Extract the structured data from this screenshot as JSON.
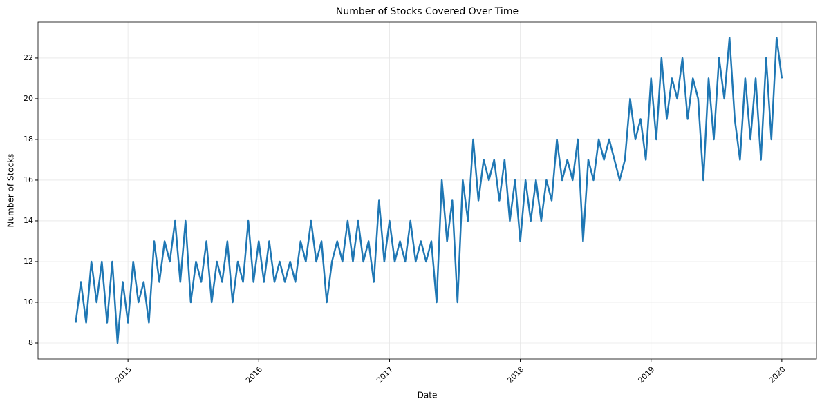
{
  "chart_data": {
    "type": "line",
    "title": "Number of Stocks Covered Over Time",
    "x_label": "Date",
    "y_label": "Number of Stocks",
    "x": [
      2014.6,
      2014.64,
      2014.68,
      2014.72,
      2014.76,
      2014.8,
      2014.84,
      2014.88,
      2014.92,
      2014.96,
      2015,
      2015.04,
      2015.08,
      2015.12,
      2015.16,
      2015.2,
      2015.24,
      2015.28,
      2015.32,
      2015.36,
      2015.4,
      2015.44,
      2015.48,
      2015.52,
      2015.56,
      2015.6,
      2015.64,
      2015.68,
      2015.72,
      2015.76,
      2015.8,
      2015.84,
      2015.88,
      2015.92,
      2015.96,
      2016,
      2016.04,
      2016.08,
      2016.12,
      2016.16,
      2016.2,
      2016.24,
      2016.28,
      2016.32,
      2016.36,
      2016.4,
      2016.44,
      2016.48,
      2016.52,
      2016.56,
      2016.6,
      2016.64,
      2016.68,
      2016.72,
      2016.76,
      2016.8,
      2016.84,
      2016.88,
      2016.92,
      2016.96,
      2017,
      2017.04,
      2017.08,
      2017.12,
      2017.16,
      2017.2,
      2017.24,
      2017.28,
      2017.32,
      2017.36,
      2017.4,
      2017.44,
      2017.48,
      2017.52,
      2017.56,
      2017.6,
      2017.64,
      2017.68,
      2017.72,
      2017.76,
      2017.8,
      2017.84,
      2017.88,
      2017.92,
      2017.96,
      2018,
      2018.04,
      2018.08,
      2018.12,
      2018.16,
      2018.2,
      2018.24,
      2018.28,
      2018.32,
      2018.36,
      2018.4,
      2018.44,
      2018.48,
      2018.52,
      2018.56,
      2018.6,
      2018.64,
      2018.68,
      2018.72,
      2018.76,
      2018.8,
      2018.84,
      2018.88,
      2018.92,
      2018.96,
      2019,
      2019.04,
      2019.08,
      2019.12,
      2019.16,
      2019.2,
      2019.24,
      2019.28,
      2019.32,
      2019.36,
      2019.4,
      2019.44,
      2019.48,
      2019.52,
      2019.56,
      2019.6,
      2019.64,
      2019.68,
      2019.72,
      2019.76,
      2019.8,
      2019.84,
      2019.88,
      2019.92,
      2019.96,
      2020
    ],
    "series": [
      {
        "name": "Number of Stocks",
        "color": "#1f77b4",
        "values": [
          9,
          11,
          9,
          12,
          10,
          12,
          9,
          12,
          8,
          11,
          9,
          12,
          10,
          11,
          9,
          13,
          11,
          13,
          12,
          14,
          11,
          14,
          10,
          12,
          11,
          13,
          10,
          12,
          11,
          13,
          10,
          12,
          11,
          14,
          11,
          13,
          11,
          13,
          11,
          12,
          11,
          12,
          11,
          13,
          12,
          14,
          12,
          13,
          10,
          12,
          13,
          12,
          14,
          12,
          14,
          12,
          13,
          11,
          15,
          12,
          14,
          12,
          13,
          12,
          14,
          12,
          13,
          12,
          13,
          10,
          16,
          13,
          15,
          10,
          16,
          14,
          18,
          15,
          17,
          16,
          17,
          15,
          17,
          14,
          16,
          13,
          16,
          14,
          16,
          14,
          16,
          15,
          18,
          16,
          17,
          16,
          18,
          13,
          17,
          16,
          18,
          17,
          18,
          17,
          16,
          17,
          20,
          18,
          19,
          17,
          21,
          18,
          22,
          19,
          21,
          20,
          22,
          19,
          21,
          20,
          16,
          21,
          18,
          22,
          20,
          23,
          19,
          17,
          21,
          18,
          21,
          17,
          22,
          18,
          23,
          21
        ]
      }
    ],
    "xlim": [
      2014.312,
      2020.265
    ],
    "xticks": [
      2015,
      2016,
      2017,
      2018,
      2019,
      2020
    ],
    "ylim": [
      7.22,
      23.76
    ],
    "yticks": [
      8,
      10,
      12,
      14,
      16,
      18,
      20,
      22
    ],
    "grid": true
  }
}
